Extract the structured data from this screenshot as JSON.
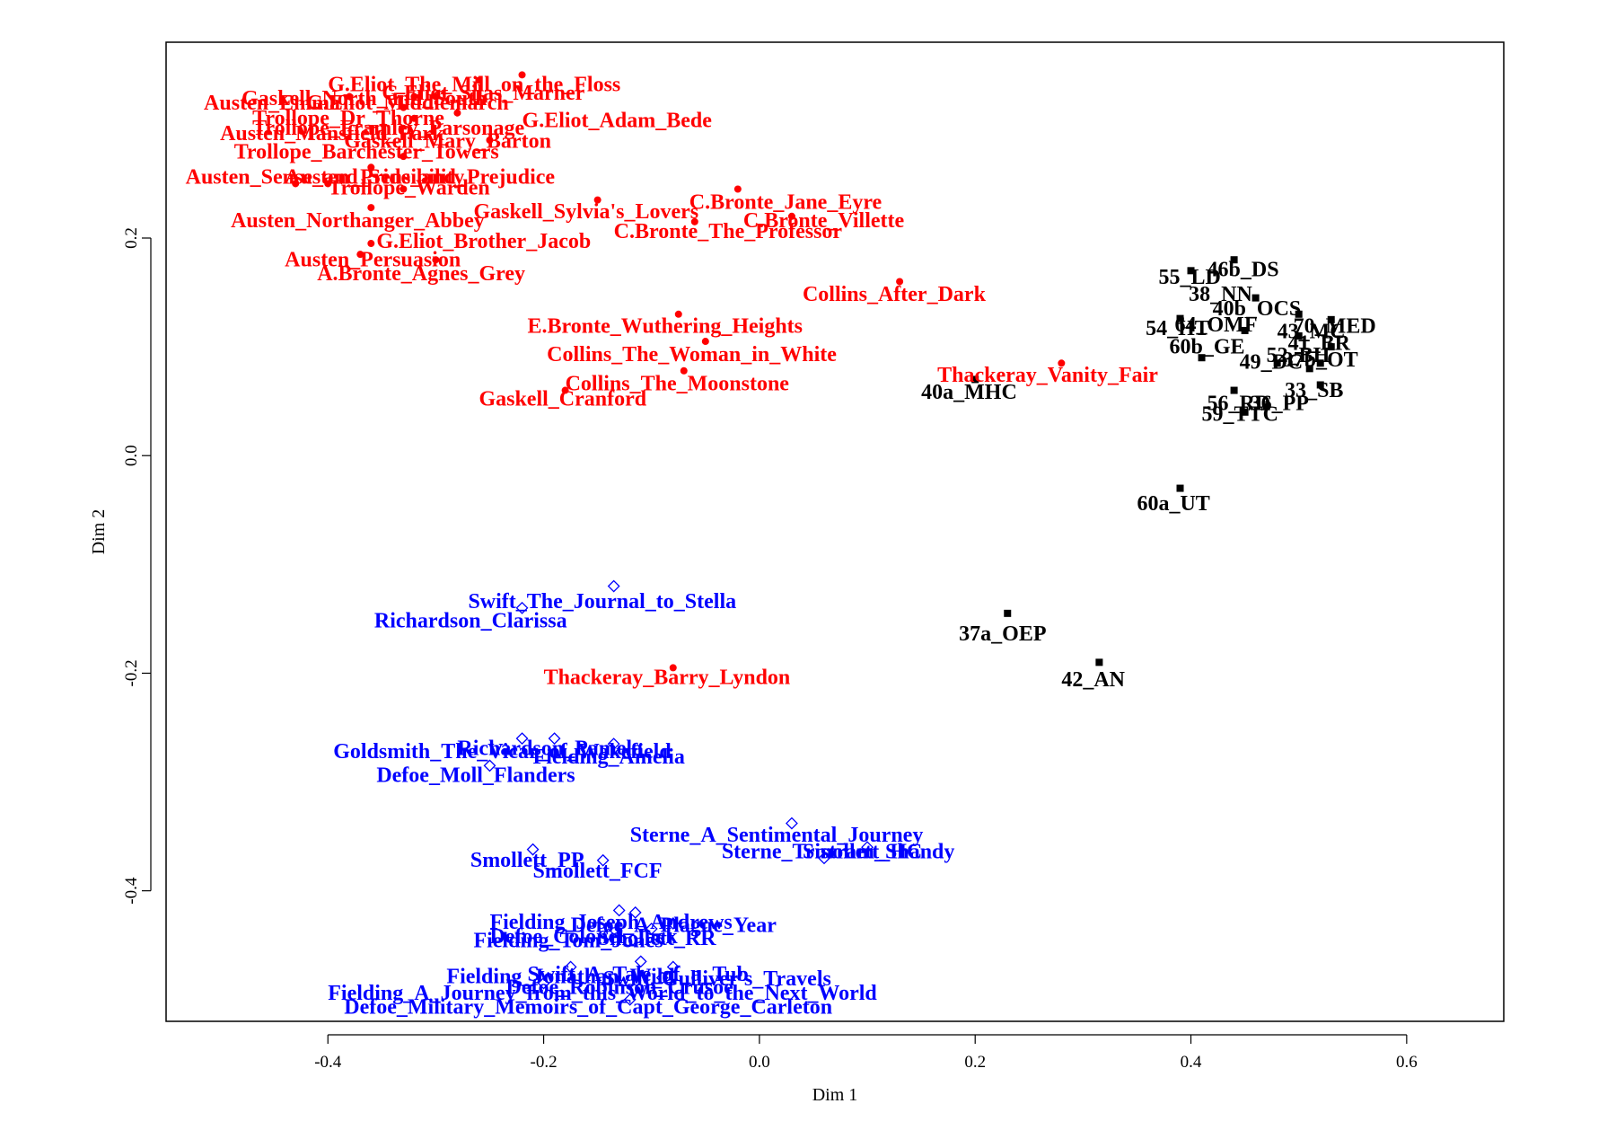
{
  "chart_data": {
    "type": "scatter",
    "title": "",
    "xlabel": "Dim 1",
    "ylabel": "Dim 2",
    "xlim": [
      -0.55,
      0.69
    ],
    "ylim": [
      -0.52,
      0.38
    ],
    "xticks": [
      -0.4,
      -0.2,
      0.0,
      0.2,
      0.4,
      0.6
    ],
    "xtick_labels": [
      "-0.4",
      "-0.2",
      "0.0",
      "0.2",
      "0.4",
      "0.6"
    ],
    "yticks": [
      -0.4,
      -0.2,
      0.0,
      0.2
    ],
    "ytick_labels": [
      "-0.4",
      "-0.2",
      "0.0",
      "0.2"
    ],
    "grid": false,
    "legend": "none",
    "series": [
      {
        "color": "#ff0000",
        "marker": "filled-circle",
        "points": [
          {
            "x": -0.22,
            "y": 0.35,
            "label": "G.Eliot_The_Mill_on_the_Floss"
          },
          {
            "x": -0.26,
            "y": 0.345,
            "label": "G.Eliot_Silas_Marner"
          },
          {
            "x": -0.38,
            "y": 0.33,
            "label": "Austen_Emma"
          },
          {
            "x": -0.32,
            "y": 0.33,
            "label": "Gaskell_North_and_South"
          },
          {
            "x": -0.28,
            "y": 0.315,
            "label": "G.Eliot_Middlemarch"
          },
          {
            "x": -0.3,
            "y": 0.33,
            "label": "Trollope_Dr_Thorne"
          },
          {
            "x": -0.25,
            "y": 0.29,
            "label": "G.Eliot_Adam_Bede"
          },
          {
            "x": -0.33,
            "y": 0.32,
            "label": "Austen_Mansfield_Park"
          },
          {
            "x": -0.32,
            "y": 0.31,
            "label": "Trollope_Framley_Parsonage"
          },
          {
            "x": -0.33,
            "y": 0.275,
            "label": "Gaskell_Mary_Barton"
          },
          {
            "x": -0.36,
            "y": 0.265,
            "label": "Trollope_Barchester_Towers"
          },
          {
            "x": -0.43,
            "y": 0.25,
            "label": "Austen_Sense_and_Sensibility"
          },
          {
            "x": -0.4,
            "y": 0.25,
            "label": "Austen_Pride_and_Prejudice"
          },
          {
            "x": -0.33,
            "y": 0.245,
            "label": "Trollope_Warden"
          },
          {
            "x": -0.36,
            "y": 0.228,
            "label": "Austen_Northanger_Abbey"
          },
          {
            "x": -0.15,
            "y": 0.235,
            "label": "Gaskell_Sylvia's_Lovers"
          },
          {
            "x": -0.02,
            "y": 0.245,
            "label": "C.Bronte_Jane_Eyre"
          },
          {
            "x": 0.03,
            "y": 0.22,
            "label": "C.Bronte_Villette"
          },
          {
            "x": -0.06,
            "y": 0.215,
            "label": "C.Bronte_The_Professor"
          },
          {
            "x": -0.36,
            "y": 0.195,
            "label": "G.Eliot_Brother_Jacob"
          },
          {
            "x": -0.37,
            "y": 0.185,
            "label": "Austen_Persuasion"
          },
          {
            "x": -0.3,
            "y": 0.18,
            "label": "A.Bronte_Agnes_Grey"
          },
          {
            "x": 0.13,
            "y": 0.16,
            "label": "Collins_After_Dark"
          },
          {
            "x": -0.075,
            "y": 0.13,
            "label": "E.Bronte_Wuthering_Heights"
          },
          {
            "x": -0.05,
            "y": 0.105,
            "label": "Collins_The_Woman_in_White"
          },
          {
            "x": 0.28,
            "y": 0.085,
            "label": "Thackeray_Vanity_Fair"
          },
          {
            "x": -0.07,
            "y": 0.078,
            "label": "Collins_The_Moonstone"
          },
          {
            "x": -0.18,
            "y": 0.06,
            "label": "Gaskell_Cranford"
          },
          {
            "x": -0.08,
            "y": -0.195,
            "label": "Thackeray_Barry_Lyndon"
          }
        ]
      },
      {
        "color": "#000000",
        "marker": "filled-square",
        "points": [
          {
            "x": 0.44,
            "y": 0.18,
            "label": "46b_DS"
          },
          {
            "x": 0.4,
            "y": 0.17,
            "label": "55_LD"
          },
          {
            "x": 0.46,
            "y": 0.145,
            "label": "38_NN"
          },
          {
            "x": 0.5,
            "y": 0.13,
            "label": "40b_OCS"
          },
          {
            "x": 0.39,
            "y": 0.126,
            "label": "54_HT"
          },
          {
            "x": 0.45,
            "y": 0.115,
            "label": "64_OMF"
          },
          {
            "x": 0.53,
            "y": 0.125,
            "label": "70_MED"
          },
          {
            "x": 0.5,
            "y": 0.11,
            "label": "43_MC"
          },
          {
            "x": 0.41,
            "y": 0.09,
            "label": "60b_GE"
          },
          {
            "x": 0.53,
            "y": 0.1,
            "label": "41_BR"
          },
          {
            "x": 0.48,
            "y": 0.085,
            "label": "49_DC"
          },
          {
            "x": 0.51,
            "y": 0.08,
            "label": "52_BH"
          },
          {
            "x": 0.52,
            "y": 0.085,
            "label": "37b_OT"
          },
          {
            "x": 0.52,
            "y": 0.065,
            "label": "33_SB"
          },
          {
            "x": 0.44,
            "y": 0.06,
            "label": "56_RD"
          },
          {
            "x": 0.47,
            "y": 0.045,
            "label": "36_PP"
          },
          {
            "x": 0.45,
            "y": 0.04,
            "label": "59_TTC"
          },
          {
            "x": 0.2,
            "y": 0.07,
            "label": "40a_MHC"
          },
          {
            "x": 0.39,
            "y": -0.03,
            "label": "60a_UT"
          },
          {
            "x": 0.23,
            "y": -0.145,
            "label": "37a_OEP"
          },
          {
            "x": 0.315,
            "y": -0.19,
            "label": "42_AN"
          }
        ]
      },
      {
        "color": "#0000ff",
        "marker": "open-diamond",
        "points": [
          {
            "x": -0.135,
            "y": -0.12,
            "label": "Swift_The_Journal_to_Stella"
          },
          {
            "x": -0.22,
            "y": -0.14,
            "label": "Richardson_Clarissa"
          },
          {
            "x": -0.22,
            "y": -0.26,
            "label": "Richardson_Pamela"
          },
          {
            "x": -0.19,
            "y": -0.26,
            "label": "Goldsmith_The_Vicar_of_Wakefield"
          },
          {
            "x": -0.135,
            "y": -0.265,
            "label": "Fielding_Amelia"
          },
          {
            "x": -0.25,
            "y": -0.285,
            "label": "Defoe_Moll_Flanders"
          },
          {
            "x": 0.03,
            "y": -0.338,
            "label": "Sterne_A_Sentimental_Journey"
          },
          {
            "x": 0.1,
            "y": -0.36,
            "label": "Sterne_Tristram_Shandy"
          },
          {
            "x": 0.06,
            "y": -0.37,
            "label": "Smollett_HC"
          },
          {
            "x": -0.21,
            "y": -0.362,
            "label": "Smollett_PP"
          },
          {
            "x": -0.145,
            "y": -0.372,
            "label": "Smollett_FCF"
          },
          {
            "x": -0.13,
            "y": -0.418,
            "label": "Fielding_Joseph_Andrews"
          },
          {
            "x": -0.115,
            "y": -0.42,
            "label": "Defoe_A_Plague_Year"
          },
          {
            "x": -0.1,
            "y": -0.435,
            "label": "Defoe_Colonel_Jack"
          },
          {
            "x": -0.14,
            "y": -0.44,
            "label": "Fielding_Tom_Jones"
          },
          {
            "x": -0.08,
            "y": -0.43,
            "label": "Smollett_RR"
          },
          {
            "x": -0.175,
            "y": -0.47,
            "label": "Fielding_Jonathan_Wild"
          },
          {
            "x": -0.11,
            "y": -0.465,
            "label": "Swift_A_Tale_of_a_Tub"
          },
          {
            "x": -0.08,
            "y": -0.47,
            "label": "Swift_Gulliver's_Travels"
          },
          {
            "x": -0.09,
            "y": -0.48,
            "label": "Defoe_Robinson_Crusoe"
          },
          {
            "x": -0.2,
            "y": -0.485,
            "label": "Fielding_A_Journey_from_this_World_to_the_Next_World"
          },
          {
            "x": -0.12,
            "y": -0.5,
            "label": "Defoe_Military_Memoirs_of_Capt_George_Carleton"
          }
        ]
      }
    ],
    "label_lines": [
      {
        "color": "#ff0000",
        "lines": [
          {
            "text": "G.Eliot_The_Mill_on_the_Floss",
            "x": -0.4,
            "y": 0.335
          },
          {
            "text": "G.Eliot_Silas_Marner",
            "x": -0.35,
            "y": 0.327
          },
          {
            "text": "Austen_Emma",
            "x": -0.515,
            "y": 0.318
          },
          {
            "text": "Gaskell_North_and_South",
            "x": -0.48,
            "y": 0.322
          },
          {
            "text": "G.Eliot_Middlemarch",
            "x": -0.42,
            "y": 0.318
          },
          {
            "text": "Trollope_Dr_Thorne",
            "x": -0.47,
            "y": 0.304
          },
          {
            "text": "G.Eliot_Adam_Bede",
            "x": -0.22,
            "y": 0.302
          },
          {
            "text": "Austen_Mansfield_Park",
            "x": -0.5,
            "y": 0.29
          },
          {
            "text": "Trollope_Framley_Parsonage",
            "x": -0.47,
            "y": 0.295
          },
          {
            "text": "Gaskell_Mary_Barton",
            "x": -0.385,
            "y": 0.283
          },
          {
            "text": "Trollope_Barchester_Towers",
            "x": -0.487,
            "y": 0.273
          },
          {
            "text": "Austen_Sense_and_Sensibility",
            "x": -0.532,
            "y": 0.25
          },
          {
            "text": "Austen_Pride_and_Prejudice",
            "x": -0.44,
            "y": 0.25
          },
          {
            "text": "Trollope_Warden",
            "x": -0.4,
            "y": 0.24
          },
          {
            "text": "Austen_Northanger_Abbey",
            "x": -0.49,
            "y": 0.21
          },
          {
            "text": "Gaskell_Sylvia's_Lovers",
            "x": -0.265,
            "y": 0.218
          },
          {
            "text": "C.Bronte_Jane_Eyre",
            "x": -0.065,
            "y": 0.227
          },
          {
            "text": "C.Bronte_Villette",
            "x": -0.015,
            "y": 0.21
          },
          {
            "text": "C.Bronte_The_Professor",
            "x": -0.135,
            "y": 0.2
          },
          {
            "text": "G.Eliot_Brother_Jacob",
            "x": -0.355,
            "y": 0.191
          },
          {
            "text": "Austen_Persuasion",
            "x": -0.44,
            "y": 0.174
          },
          {
            "text": "A.Bronte_Agnes_Grey",
            "x": -0.41,
            "y": 0.161
          },
          {
            "text": "Collins_After_Dark",
            "x": 0.04,
            "y": 0.142
          },
          {
            "text": "E.Bronte_Wuthering_Heights",
            "x": -0.215,
            "y": 0.113
          },
          {
            "text": "Collins_The_Woman_in_White",
            "x": -0.197,
            "y": 0.087
          },
          {
            "text": "Thackeray_Vanity_Fair",
            "x": 0.165,
            "y": 0.068
          },
          {
            "text": "Collins_The_Moonstone",
            "x": -0.18,
            "y": 0.06
          },
          {
            "text": "Gaskell_Cranford",
            "x": -0.26,
            "y": 0.046
          },
          {
            "text": "Thackeray_Barry_Lyndon",
            "x": -0.2,
            "y": -0.21
          }
        ]
      },
      {
        "color": "#000000",
        "lines": [
          {
            "text": "46b_DS",
            "x": 0.415,
            "y": 0.165
          },
          {
            "text": "55_LD",
            "x": 0.37,
            "y": 0.158
          },
          {
            "text": "38_NN",
            "x": 0.398,
            "y": 0.142
          },
          {
            "text": "40b_OCS",
            "x": 0.42,
            "y": 0.129
          },
          {
            "text": "54_HT",
            "x": 0.358,
            "y": 0.111
          },
          {
            "text": "64_OMF",
            "x": 0.385,
            "y": 0.114
          },
          {
            "text": "70_MED",
            "x": 0.495,
            "y": 0.113
          },
          {
            "text": "43_MC",
            "x": 0.48,
            "y": 0.108
          },
          {
            "text": "60b_GE",
            "x": 0.38,
            "y": 0.094
          },
          {
            "text": "41_BR",
            "x": 0.49,
            "y": 0.097
          },
          {
            "text": "49_DC",
            "x": 0.445,
            "y": 0.08
          },
          {
            "text": "52_BH",
            "x": 0.47,
            "y": 0.086
          },
          {
            "text": "37b_OT",
            "x": 0.485,
            "y": 0.082
          },
          {
            "text": "33_SB",
            "x": 0.487,
            "y": 0.054
          },
          {
            "text": "56_RD",
            "x": 0.415,
            "y": 0.042
          },
          {
            "text": "36_PP",
            "x": 0.455,
            "y": 0.042
          },
          {
            "text": "59_TTC",
            "x": 0.41,
            "y": 0.032
          },
          {
            "text": "40a_MHC",
            "x": 0.15,
            "y": 0.052
          },
          {
            "text": "60a_UT",
            "x": 0.35,
            "y": -0.05
          },
          {
            "text": "37a_OEP",
            "x": 0.185,
            "y": -0.17
          },
          {
            "text": "42_AN",
            "x": 0.28,
            "y": -0.212
          }
        ]
      },
      {
        "color": "#0000ff",
        "lines": [
          {
            "text": "Swift_The_Journal_to_Stella",
            "x": -0.27,
            "y": -0.14
          },
          {
            "text": "Richardson_Clarissa",
            "x": -0.357,
            "y": -0.158
          },
          {
            "text": "Richardson_Pamela",
            "x": -0.28,
            "y": -0.275
          },
          {
            "text": "Goldsmith_The_Vicar_of_Wakefield",
            "x": -0.395,
            "y": -0.278
          },
          {
            "text": "Fielding_Amelia",
            "x": -0.21,
            "y": -0.283
          },
          {
            "text": "Defoe_Moll_Flanders",
            "x": -0.355,
            "y": -0.3
          },
          {
            "text": "Sterne_A_Sentimental_Journey",
            "x": -0.12,
            "y": -0.355
          },
          {
            "text": "Sterne_Tristram_Shandy",
            "x": -0.035,
            "y": -0.37
          },
          {
            "text": "Smollett_HC",
            "x": 0.04,
            "y": -0.37
          },
          {
            "text": "Smollett_PP",
            "x": -0.268,
            "y": -0.378
          },
          {
            "text": "Smollett_FCF",
            "x": -0.21,
            "y": -0.388
          },
          {
            "text": "Fielding_Joseph_Andrews",
            "x": -0.25,
            "y": -0.435
          },
          {
            "text": "Defoe_A_Plague_Year",
            "x": -0.175,
            "y": -0.438
          },
          {
            "text": "Defoe_Colonel_Jack",
            "x": -0.25,
            "y": -0.448
          },
          {
            "text": "Fielding_Tom_Jones",
            "x": -0.265,
            "y": -0.452
          },
          {
            "text": "Smollett_RR",
            "x": -0.15,
            "y": -0.45
          },
          {
            "text": "Fielding_Jonathan_Wild",
            "x": -0.29,
            "y": -0.485
          },
          {
            "text": "Swift_A_Tale_of_a_Tub",
            "x": -0.215,
            "y": -0.483
          },
          {
            "text": "Swift_Gulliver's_Travels",
            "x": -0.145,
            "y": -0.487
          },
          {
            "text": "Defoe_Robinson_Crusoe",
            "x": -0.235,
            "y": -0.495
          },
          {
            "text": "Fielding_A_Journey_from_this_World_to_the_Next_World",
            "x": -0.4,
            "y": -0.5
          },
          {
            "text": "Defoe_Military_Memoirs_of_Capt_George_Carleton",
            "x": -0.385,
            "y": -0.513
          }
        ]
      }
    ]
  }
}
